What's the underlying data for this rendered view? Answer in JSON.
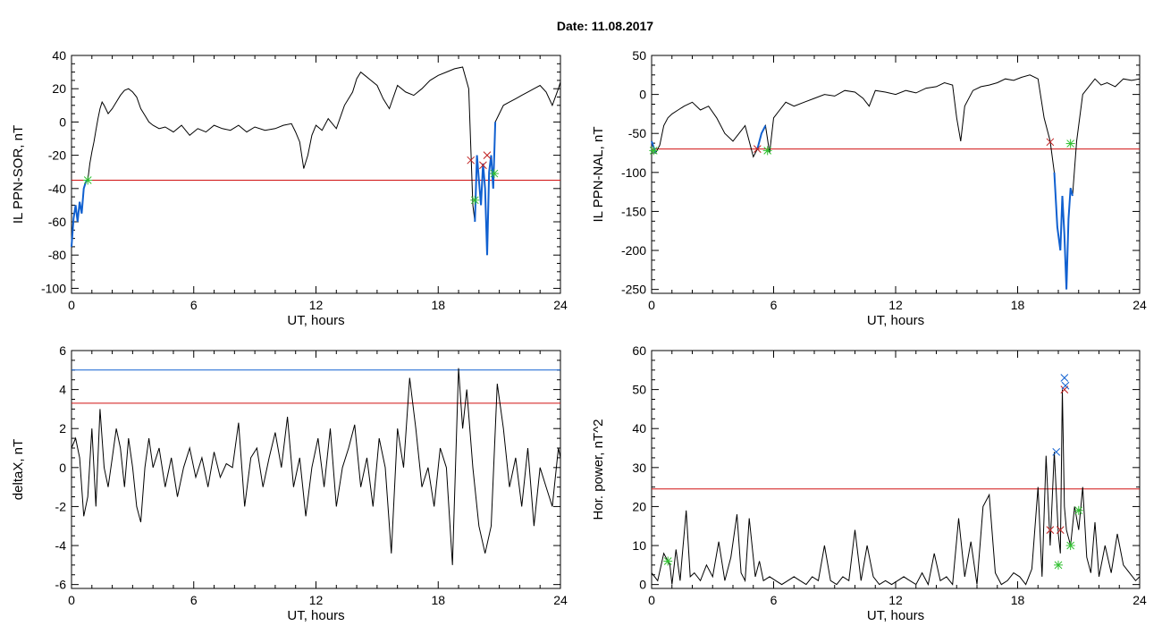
{
  "figure_title": "Date:  11.08.2017",
  "colors": {
    "trace": "#000000",
    "highlight": "#1060d0",
    "threshold": "#d01010",
    "upper_threshold": "#1060d0",
    "start_marker": "#30c030",
    "end_marker": "#c02020",
    "peak_marker": "#1060d0",
    "frame": "#000000"
  },
  "chart_data": [
    {
      "id": "sor",
      "type": "line",
      "title": "",
      "xlabel": "UT, hours",
      "ylabel": "IL PPN-SOR, nT",
      "xlim": [
        0,
        24
      ],
      "ylim": [
        -103,
        40
      ],
      "xticks": [
        "0",
        "6",
        "12",
        "18",
        "24"
      ],
      "yticks": [
        "40",
        "20",
        "0",
        "-20",
        "-40",
        "-60",
        "-80",
        "-100"
      ],
      "ytick_values": [
        40,
        20,
        0,
        -20,
        -40,
        -60,
        -80,
        -100
      ],
      "grid": false,
      "thresholds": [
        {
          "y": -35,
          "color": "threshold"
        }
      ],
      "series": [
        {
          "x": [
            0,
            0.1,
            0.2,
            0.3,
            0.4,
            0.5,
            0.6,
            0.7,
            0.8,
            0.9,
            1.0,
            1.1,
            1.2,
            1.3,
            1.4,
            1.5,
            1.6,
            1.8,
            2.0,
            2.2,
            2.4,
            2.6,
            2.8,
            3.0,
            3.2,
            3.4,
            3.6,
            3.8,
            4.0,
            4.3,
            4.6,
            5.0,
            5.4,
            5.8,
            6.2,
            6.6,
            7.0,
            7.4,
            7.8,
            8.2,
            8.6,
            9.0,
            9.5,
            10.0,
            10.4,
            10.8,
            11.0,
            11.2,
            11.4,
            11.6,
            11.8,
            12.0,
            12.3,
            12.6,
            13.0,
            13.4,
            13.8,
            14.0,
            14.2,
            14.4,
            14.7,
            15.0,
            15.3,
            15.6,
            16.0,
            16.4,
            16.8,
            17.2,
            17.6,
            18.0,
            18.4,
            18.8,
            19.2,
            19.5,
            19.7,
            19.8,
            19.9,
            20.0,
            20.1,
            20.2,
            20.3,
            20.4,
            20.5,
            20.6,
            20.7,
            20.8,
            21.0,
            21.2,
            21.5,
            21.8,
            22.1,
            22.4,
            22.7,
            23.0,
            23.3,
            23.6,
            23.9,
            24.0
          ],
          "y": [
            -75,
            -58,
            -50,
            -60,
            -48,
            -55,
            -40,
            -36,
            -35,
            -25,
            -18,
            -12,
            -5,
            2,
            8,
            12,
            10,
            5,
            8,
            12,
            16,
            19,
            20,
            18,
            15,
            8,
            4,
            0,
            -2,
            -4,
            -3,
            -6,
            -2,
            -8,
            -4,
            -6,
            -2,
            -4,
            -5,
            -2,
            -6,
            -3,
            -5,
            -4,
            -2,
            -1,
            -6,
            -12,
            -28,
            -20,
            -8,
            -2,
            -5,
            2,
            -4,
            10,
            18,
            26,
            30,
            28,
            25,
            22,
            14,
            8,
            22,
            18,
            16,
            20,
            25,
            28,
            30,
            32,
            33,
            20,
            -50,
            -60,
            -20,
            -35,
            -50,
            -25,
            -40,
            -80,
            -30,
            -20,
            -40,
            0,
            5,
            10,
            12,
            14,
            16,
            18,
            20,
            22,
            18,
            10,
            20,
            24
          ],
          "highlight_ranges": [
            [
              0,
              0.8
            ],
            [
              19.75,
              20.9
            ]
          ]
        }
      ],
      "markers": [
        {
          "x": 0.8,
          "y": -35,
          "symbol": "*",
          "color": "start_marker"
        },
        {
          "x": 19.8,
          "y": -47,
          "symbol": "*",
          "color": "start_marker"
        },
        {
          "x": 20.75,
          "y": -31,
          "symbol": "*",
          "color": "start_marker"
        },
        {
          "x": 19.6,
          "y": -23,
          "symbol": "x",
          "color": "end_marker"
        },
        {
          "x": 20.2,
          "y": -26,
          "symbol": "x",
          "color": "end_marker"
        },
        {
          "x": 20.4,
          "y": -20,
          "symbol": "x",
          "color": "end_marker"
        }
      ]
    },
    {
      "id": "nal",
      "type": "line",
      "title": "",
      "xlabel": "UT, hours",
      "ylabel": "IL PPN-NAL, nT",
      "xlim": [
        0,
        24
      ],
      "ylim": [
        -255,
        50
      ],
      "xticks": [
        "0",
        "6",
        "12",
        "18",
        "24"
      ],
      "yticks": [
        "50",
        "0",
        "-50",
        "-100",
        "-150",
        "-200",
        "-250"
      ],
      "ytick_values": [
        50,
        0,
        -50,
        -100,
        -150,
        -200,
        -250
      ],
      "grid": false,
      "thresholds": [
        {
          "y": -70,
          "color": "threshold"
        }
      ],
      "series": [
        {
          "x": [
            0,
            0.2,
            0.4,
            0.6,
            0.8,
            1.0,
            1.3,
            1.6,
            2.0,
            2.4,
            2.8,
            3.2,
            3.6,
            4.0,
            4.3,
            4.6,
            5.0,
            5.2,
            5.4,
            5.6,
            5.8,
            6.0,
            6.3,
            6.6,
            7.0,
            7.5,
            8.0,
            8.5,
            9.0,
            9.5,
            10.0,
            10.4,
            10.7,
            11.0,
            11.5,
            12.0,
            12.5,
            13.0,
            13.5,
            14.0,
            14.4,
            14.8,
            15.0,
            15.2,
            15.4,
            15.8,
            16.2,
            16.6,
            17.0,
            17.4,
            17.8,
            18.2,
            18.6,
            19.0,
            19.3,
            19.6,
            19.8,
            19.95,
            20.1,
            20.2,
            20.3,
            20.4,
            20.5,
            20.6,
            20.7,
            20.9,
            21.2,
            21.5,
            21.8,
            22.1,
            22.4,
            22.8,
            23.2,
            23.6,
            24.0
          ],
          "y": [
            -60,
            -75,
            -65,
            -40,
            -30,
            -25,
            -20,
            -15,
            -10,
            -20,
            -15,
            -30,
            -50,
            -60,
            -50,
            -40,
            -80,
            -70,
            -50,
            -40,
            -75,
            -30,
            -20,
            -10,
            -15,
            -10,
            -5,
            0,
            -2,
            5,
            3,
            -5,
            -15,
            5,
            3,
            0,
            5,
            2,
            8,
            10,
            15,
            12,
            -30,
            -60,
            -15,
            5,
            10,
            12,
            15,
            20,
            18,
            22,
            25,
            20,
            -30,
            -60,
            -100,
            -170,
            -200,
            -130,
            -180,
            -250,
            -160,
            -120,
            -130,
            -60,
            0,
            10,
            20,
            12,
            15,
            10,
            20,
            18,
            20
          ],
          "highlight_ranges": [
            [
              0,
              0.2
            ],
            [
              5.1,
              5.7
            ],
            [
              19.7,
              20.8
            ]
          ]
        }
      ],
      "markers": [
        {
          "x": 0.1,
          "y": -72,
          "symbol": "*",
          "color": "start_marker"
        },
        {
          "x": 5.7,
          "y": -72,
          "symbol": "*",
          "color": "start_marker"
        },
        {
          "x": 20.6,
          "y": -63,
          "symbol": "*",
          "color": "start_marker"
        },
        {
          "x": 5.2,
          "y": -70,
          "symbol": "x",
          "color": "end_marker"
        },
        {
          "x": 19.6,
          "y": -61,
          "symbol": "x",
          "color": "end_marker"
        }
      ]
    },
    {
      "id": "deltax",
      "type": "line",
      "title": "",
      "xlabel": "UT, hours",
      "ylabel": "deltaX, nT",
      "xlim": [
        0,
        24
      ],
      "ylim": [
        -6.2,
        6
      ],
      "xticks": [
        "0",
        "6",
        "12",
        "18",
        "24"
      ],
      "yticks": [
        "6",
        "4",
        "2",
        "0",
        "-2",
        "-4",
        "-6"
      ],
      "ytick_values": [
        6,
        4,
        2,
        0,
        -2,
        -4,
        -6
      ],
      "grid": false,
      "thresholds": [
        {
          "y": 5.0,
          "color": "upper_threshold"
        },
        {
          "y": 3.3,
          "color": "threshold"
        }
      ],
      "series": [
        {
          "x": [
            0,
            0.2,
            0.4,
            0.6,
            0.8,
            1.0,
            1.2,
            1.4,
            1.6,
            1.8,
            2.0,
            2.2,
            2.4,
            2.6,
            2.8,
            3.0,
            3.2,
            3.4,
            3.6,
            3.8,
            4.0,
            4.3,
            4.6,
            4.9,
            5.2,
            5.5,
            5.8,
            6.1,
            6.4,
            6.7,
            7.0,
            7.3,
            7.6,
            7.9,
            8.2,
            8.5,
            8.8,
            9.1,
            9.4,
            9.7,
            10.0,
            10.3,
            10.6,
            10.9,
            11.2,
            11.5,
            11.8,
            12.1,
            12.4,
            12.7,
            13.0,
            13.3,
            13.6,
            13.9,
            14.2,
            14.5,
            14.8,
            15.1,
            15.4,
            15.7,
            16.0,
            16.3,
            16.6,
            16.9,
            17.2,
            17.5,
            17.8,
            18.1,
            18.4,
            18.7,
            19.0,
            19.2,
            19.4,
            19.7,
            20.0,
            20.3,
            20.6,
            20.9,
            21.2,
            21.5,
            21.8,
            22.1,
            22.4,
            22.7,
            23.0,
            23.3,
            23.6,
            23.9,
            24.0
          ],
          "y": [
            1,
            1.5,
            0.5,
            -2.5,
            -1.5,
            2,
            -2,
            3,
            0,
            -1,
            0.5,
            2,
            1,
            -1,
            1.5,
            0,
            -2,
            -2.8,
            0,
            1.5,
            0,
            1,
            -1,
            0.5,
            -1.5,
            0,
            1,
            -0.5,
            0.5,
            -1,
            0.8,
            -0.5,
            0.2,
            0,
            2.3,
            -2,
            0.5,
            1,
            -1,
            0.5,
            1.8,
            0,
            2.6,
            -1,
            0.5,
            -2.5,
            0,
            1.5,
            -1,
            2,
            -2,
            0,
            1,
            2.2,
            -1,
            0.5,
            -2,
            1.5,
            0,
            -4.4,
            2,
            0,
            4.6,
            2,
            -1,
            0,
            -2,
            1,
            0,
            -5,
            5.1,
            2,
            4,
            0,
            -3,
            -4.4,
            -3,
            4.3,
            2,
            -1,
            0.5,
            -2,
            1,
            -3,
            0,
            -1,
            -2,
            1,
            0.5
          ],
          "highlight_ranges": []
        }
      ],
      "markers": []
    },
    {
      "id": "power",
      "type": "line",
      "title": "",
      "xlabel": "UT, hours",
      "ylabel": "Hor. power, nT^2",
      "xlim": [
        0,
        24
      ],
      "ylim": [
        -1,
        60
      ],
      "xticks": [
        "0",
        "6",
        "12",
        "18",
        "24"
      ],
      "yticks": [
        "60",
        "50",
        "40",
        "30",
        "20",
        "10",
        "0"
      ],
      "ytick_values": [
        60,
        50,
        40,
        30,
        20,
        10,
        0
      ],
      "grid": false,
      "thresholds": [
        {
          "y": 24.5,
          "color": "threshold"
        }
      ],
      "series": [
        {
          "x": [
            0,
            0.3,
            0.6,
            0.9,
            1.0,
            1.2,
            1.4,
            1.5,
            1.7,
            1.9,
            2.1,
            2.4,
            2.7,
            3.0,
            3.3,
            3.6,
            3.9,
            4.2,
            4.4,
            4.6,
            4.8,
            5.1,
            5.3,
            5.5,
            5.8,
            6.1,
            6.4,
            6.7,
            7.0,
            7.3,
            7.6,
            7.9,
            8.2,
            8.5,
            8.8,
            9.1,
            9.4,
            9.7,
            10.0,
            10.3,
            10.6,
            10.9,
            11.2,
            11.5,
            11.8,
            12.1,
            12.4,
            12.7,
            13.0,
            13.3,
            13.6,
            13.9,
            14.2,
            14.5,
            14.8,
            15.1,
            15.4,
            15.7,
            16.0,
            16.3,
            16.6,
            16.9,
            17.2,
            17.5,
            17.8,
            18.1,
            18.4,
            18.7,
            19.0,
            19.2,
            19.4,
            19.6,
            19.8,
            20.0,
            20.1,
            20.2,
            20.3,
            20.4,
            20.6,
            20.8,
            21.0,
            21.2,
            21.4,
            21.6,
            21.8,
            22.0,
            22.3,
            22.6,
            22.9,
            23.2,
            23.5,
            23.8,
            24.0
          ],
          "y": [
            3,
            1,
            8,
            5,
            0,
            9,
            1,
            7,
            19,
            2,
            3,
            1,
            5,
            2,
            11,
            1,
            7,
            18,
            3,
            1,
            17,
            2,
            6,
            1,
            2,
            1,
            0,
            1,
            2,
            1,
            0,
            2,
            1,
            10,
            1,
            0,
            2,
            1,
            14,
            1,
            10,
            2,
            0,
            1,
            0,
            1,
            2,
            1,
            0,
            3,
            0,
            8,
            1,
            2,
            0,
            17,
            2,
            11,
            0,
            20,
            23,
            3,
            0,
            1,
            3,
            2,
            0,
            4,
            25,
            2,
            33,
            10,
            34,
            13,
            8,
            50,
            20,
            14,
            10,
            20,
            14,
            25,
            7,
            3,
            16,
            2,
            10,
            3,
            13,
            5,
            3,
            1,
            2
          ],
          "highlight_ranges": []
        }
      ],
      "markers": [
        {
          "x": 0.8,
          "y": 6,
          "symbol": "*",
          "color": "start_marker"
        },
        {
          "x": 20.0,
          "y": 5,
          "symbol": "*",
          "color": "start_marker"
        },
        {
          "x": 20.6,
          "y": 10,
          "symbol": "*",
          "color": "start_marker"
        },
        {
          "x": 21.0,
          "y": 19,
          "symbol": "*",
          "color": "start_marker"
        },
        {
          "x": 19.6,
          "y": 14,
          "symbol": "x",
          "color": "end_marker"
        },
        {
          "x": 20.1,
          "y": 14,
          "symbol": "x",
          "color": "end_marker"
        },
        {
          "x": 20.3,
          "y": 50,
          "symbol": "x",
          "color": "end_marker"
        },
        {
          "x": 19.9,
          "y": 34,
          "symbol": "x",
          "color": "peak_marker"
        },
        {
          "x": 20.3,
          "y": 53,
          "symbol": "x",
          "color": "peak_marker"
        },
        {
          "x": 20.35,
          "y": 51,
          "symbol": "x",
          "color": "peak_marker"
        }
      ]
    }
  ]
}
